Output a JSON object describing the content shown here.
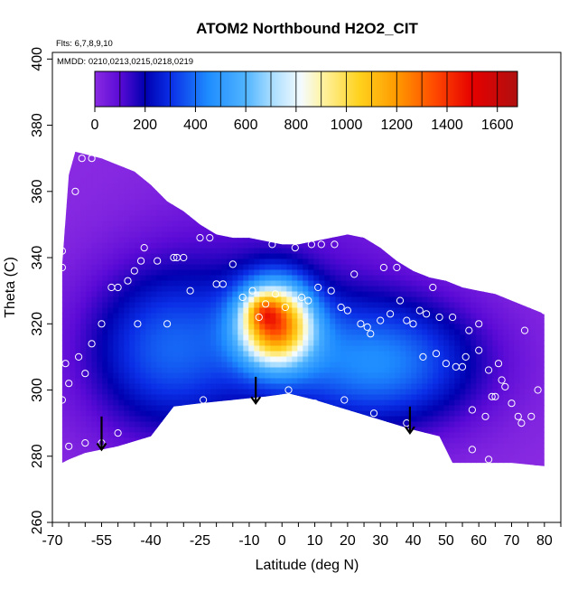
{
  "chart_data": {
    "type": "heatmap",
    "title": "ATOM2 Northbound H2O2_CIT",
    "annotations": [
      "Flts: 6,7,8,9,10",
      "MMDD: 0210,0213,0215,0218,0219"
    ],
    "xlabel": "Latitude (deg N)",
    "ylabel": "Theta (C)",
    "xlim": [
      -70,
      85
    ],
    "ylim": [
      260,
      402
    ],
    "x_ticks": [
      -70,
      -55,
      -40,
      -25,
      -10,
      0,
      10,
      20,
      30,
      40,
      50,
      60,
      70,
      80
    ],
    "x_minor_step": 5,
    "y_ticks": [
      260,
      280,
      300,
      320,
      340,
      360,
      380,
      400
    ],
    "colorbar": {
      "min": 0,
      "max": 1680,
      "ticks": [
        0,
        200,
        400,
        600,
        800,
        1000,
        1200,
        1400,
        1600
      ],
      "stops": [
        {
          "v": 0,
          "c": "#8a2be2"
        },
        {
          "v": 100,
          "c": "#5a0ad6"
        },
        {
          "v": 200,
          "c": "#0000b0"
        },
        {
          "v": 300,
          "c": "#0a2ee6"
        },
        {
          "v": 450,
          "c": "#1e8cff"
        },
        {
          "v": 600,
          "c": "#50b4ff"
        },
        {
          "v": 700,
          "c": "#a6dcff"
        },
        {
          "v": 820,
          "c": "#f4fbff"
        },
        {
          "v": 900,
          "c": "#fff4a8"
        },
        {
          "v": 1050,
          "c": "#ffd21e"
        },
        {
          "v": 1200,
          "c": "#ff9a00"
        },
        {
          "v": 1350,
          "c": "#ff4a00"
        },
        {
          "v": 1500,
          "c": "#e60000"
        },
        {
          "v": 1680,
          "c": "#b01010"
        }
      ]
    },
    "domain_upper": [
      [
        -67,
        338
      ],
      [
        -65,
        365
      ],
      [
        -63,
        372
      ],
      [
        -55,
        370
      ],
      [
        -50,
        368
      ],
      [
        -45,
        366
      ],
      [
        -40,
        362
      ],
      [
        -35,
        357
      ],
      [
        -30,
        354
      ],
      [
        -25,
        350
      ],
      [
        -20,
        347
      ],
      [
        -15,
        346
      ],
      [
        -10,
        346
      ],
      [
        -5,
        345
      ],
      [
        0,
        344
      ],
      [
        5,
        344
      ],
      [
        10,
        345
      ],
      [
        15,
        346
      ],
      [
        20,
        347
      ],
      [
        25,
        346
      ],
      [
        30,
        343
      ],
      [
        35,
        339
      ],
      [
        40,
        336
      ],
      [
        45,
        334
      ],
      [
        50,
        333
      ],
      [
        55,
        331
      ],
      [
        60,
        330
      ],
      [
        65,
        329
      ],
      [
        70,
        327
      ],
      [
        75,
        325
      ],
      [
        80,
        323
      ]
    ],
    "domain_lower": [
      [
        80,
        277
      ],
      [
        70,
        278
      ],
      [
        60,
        278
      ],
      [
        52,
        278
      ],
      [
        48,
        286
      ],
      [
        40,
        288
      ],
      [
        30,
        291
      ],
      [
        20,
        294
      ],
      [
        10,
        297
      ],
      [
        2,
        299
      ],
      [
        -5,
        298
      ],
      [
        -15,
        297
      ],
      [
        -25,
        296
      ],
      [
        -33,
        295
      ],
      [
        -40,
        286
      ],
      [
        -50,
        283
      ],
      [
        -55,
        282
      ],
      [
        -60,
        281
      ],
      [
        -65,
        279
      ],
      [
        -67,
        278
      ]
    ],
    "field_components": [
      {
        "x": 0,
        "y": 330,
        "sx": 25,
        "sy": 28,
        "amp": 100
      },
      {
        "x": 30,
        "y": 308,
        "sx": 22,
        "sy": 14,
        "amp": 420
      },
      {
        "x": -35,
        "y": 312,
        "sx": 18,
        "sy": 18,
        "amp": 350
      },
      {
        "x": -2,
        "y": 320,
        "sx": 8,
        "sy": 9,
        "amp": 1100
      },
      {
        "x": -6,
        "y": 324,
        "sx": 3.5,
        "sy": 3.5,
        "amp": 260
      }
    ],
    "samples": [
      [
        -67,
        342
      ],
      [
        -67,
        337
      ],
      [
        -67,
        297
      ],
      [
        -66,
        308
      ],
      [
        -65,
        302
      ],
      [
        -65,
        283
      ],
      [
        -63,
        360
      ],
      [
        -62,
        310
      ],
      [
        -61,
        370
      ],
      [
        -60,
        305
      ],
      [
        -60,
        284
      ],
      [
        -58,
        370
      ],
      [
        -58,
        314
      ],
      [
        -55,
        320
      ],
      [
        -55,
        284
      ],
      [
        -52,
        331
      ],
      [
        -50,
        331
      ],
      [
        -50,
        287
      ],
      [
        -47,
        333
      ],
      [
        -45,
        336
      ],
      [
        -44,
        320
      ],
      [
        -43,
        339
      ],
      [
        -42,
        343
      ],
      [
        -38,
        339
      ],
      [
        -35,
        320
      ],
      [
        -33,
        340
      ],
      [
        -32,
        340
      ],
      [
        -30,
        340
      ],
      [
        -28,
        330
      ],
      [
        -25,
        346
      ],
      [
        -24,
        297
      ],
      [
        -22,
        346
      ],
      [
        -20,
        332
      ],
      [
        -18,
        332
      ],
      [
        -15,
        338
      ],
      [
        -12,
        328
      ],
      [
        -9,
        330
      ],
      [
        -7,
        322
      ],
      [
        -5,
        326
      ],
      [
        -3,
        344
      ],
      [
        -2,
        329
      ],
      [
        1,
        325
      ],
      [
        2,
        300
      ],
      [
        4,
        343
      ],
      [
        6,
        328
      ],
      [
        8,
        327
      ],
      [
        9,
        344
      ],
      [
        10,
        296
      ],
      [
        11,
        331
      ],
      [
        12,
        344
      ],
      [
        15,
        330
      ],
      [
        16,
        344
      ],
      [
        18,
        325
      ],
      [
        19,
        297
      ],
      [
        20,
        324
      ],
      [
        22,
        335
      ],
      [
        24,
        320
      ],
      [
        26,
        319
      ],
      [
        27,
        317
      ],
      [
        28,
        293
      ],
      [
        30,
        321
      ],
      [
        31,
        337
      ],
      [
        33,
        323
      ],
      [
        35,
        337
      ],
      [
        36,
        327
      ],
      [
        38,
        290
      ],
      [
        38,
        321
      ],
      [
        40,
        320
      ],
      [
        42,
        324
      ],
      [
        43,
        310
      ],
      [
        44,
        323
      ],
      [
        46,
        331
      ],
      [
        47,
        311
      ],
      [
        48,
        322
      ],
      [
        50,
        308
      ],
      [
        52,
        322
      ],
      [
        53,
        307
      ],
      [
        55,
        307
      ],
      [
        56,
        310
      ],
      [
        57,
        318
      ],
      [
        58,
        294
      ],
      [
        58,
        282
      ],
      [
        60,
        320
      ],
      [
        60,
        312
      ],
      [
        62,
        292
      ],
      [
        63,
        306
      ],
      [
        63,
        279
      ],
      [
        64,
        298
      ],
      [
        65,
        298
      ],
      [
        66,
        308
      ],
      [
        67,
        303
      ],
      [
        68,
        301
      ],
      [
        70,
        296
      ],
      [
        72,
        292
      ],
      [
        73,
        290
      ],
      [
        74,
        318
      ],
      [
        76,
        292
      ],
      [
        78,
        300
      ],
      [
        80,
        324
      ]
    ],
    "arrows": [
      {
        "x": -55,
        "y_start": 292,
        "y_end": 282
      },
      {
        "x": -8,
        "y_start": 304,
        "y_end": 296
      },
      {
        "x": 39,
        "y_start": 295,
        "y_end": 287
      }
    ]
  }
}
